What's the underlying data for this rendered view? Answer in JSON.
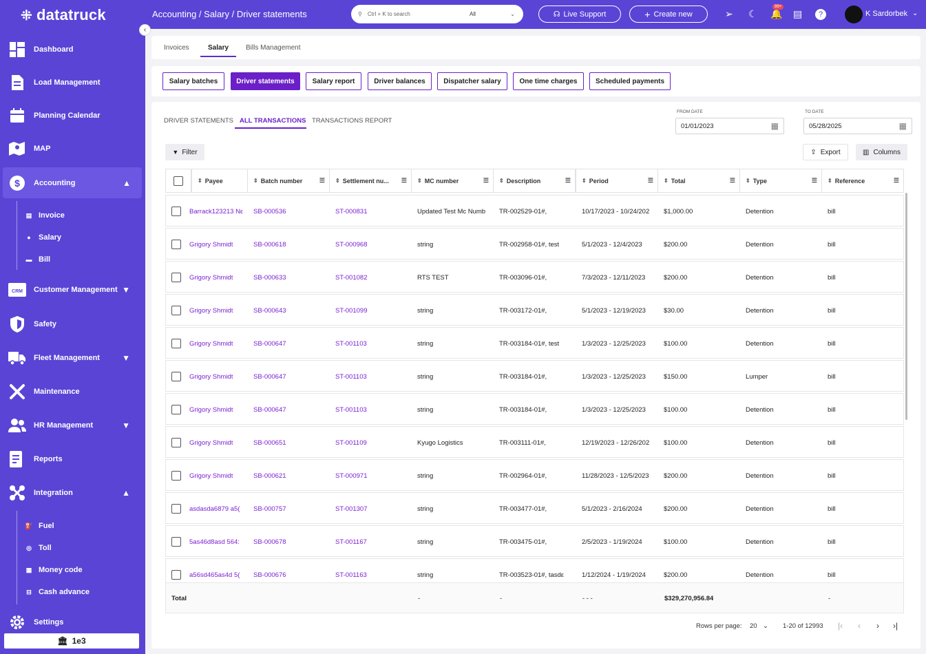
{
  "app": {
    "name": "datatruck",
    "org": "1e3"
  },
  "sidebar": {
    "items": [
      {
        "label": "Dashboard",
        "icon": "dashboard-icon"
      },
      {
        "label": "Load Management",
        "icon": "document-icon"
      },
      {
        "label": "Planning Calendar",
        "icon": "calendar-icon"
      },
      {
        "label": "MAP",
        "icon": "map-icon"
      },
      {
        "label": "Accounting",
        "icon": "dollar-icon"
      },
      {
        "label": "Customer Management",
        "icon": "crm-icon"
      },
      {
        "label": "Safety",
        "icon": "shield-icon"
      },
      {
        "label": "Fleet Management",
        "icon": "truck-icon"
      },
      {
        "label": "Maintenance",
        "icon": "wrench-icon"
      },
      {
        "label": "HR Management",
        "icon": "people-icon"
      },
      {
        "label": "Reports",
        "icon": "report-icon"
      },
      {
        "label": "Integration",
        "icon": "integration-icon"
      },
      {
        "label": "Settings",
        "icon": "gear-icon"
      }
    ],
    "accounting_sub": [
      "Invoice",
      "Salary",
      "Bill"
    ],
    "integration_sub": [
      "Fuel",
      "Toll",
      "Money code",
      "Cash advance"
    ]
  },
  "header": {
    "breadcrumb": "Accounting / Salary / Driver statements",
    "search_placeholder": "Ctrl + K to search",
    "search_scope": "All",
    "live_support": "Live Support",
    "create_new": "Create new",
    "notif_badge": "99+",
    "user": "K Sardorbek"
  },
  "tabs": [
    "Invoices",
    "Salary",
    "Bills Management"
  ],
  "subtabs": [
    "Salary batches",
    "Driver statements",
    "Salary report",
    "Driver balances",
    "Dispatcher salary",
    "One time charges",
    "Scheduled payments"
  ],
  "view_tabs": [
    "DRIVER STATEMENTS",
    "ALL TRANSACTIONS",
    "TRANSACTIONS REPORT"
  ],
  "filters": {
    "from_label": "FROM DATE",
    "from_value": "01/01/2023",
    "to_label": "TO DATE",
    "to_value": "05/28/2025",
    "filter": "Filter",
    "export": "Export",
    "columns": "Columns"
  },
  "table": {
    "columns": [
      "Payee",
      "Batch number",
      "Settlement nu...",
      "MC number",
      "Description",
      "Period",
      "Total",
      "Type",
      "Reference"
    ],
    "rows": [
      [
        "Barrack123213 Nε",
        "SB-000536",
        "ST-000831",
        "Updated Test Mc Numb",
        "TR-002529-01#,",
        "10/17/2023 - 10/24/202",
        "$1,000.00",
        "Detention",
        "bill"
      ],
      [
        "Grigory Shmidt",
        "SB-000618",
        "ST-000968",
        "string",
        "TR-002958-01#, test",
        "5/1/2023 - 12/4/2023",
        "$200.00",
        "Detention",
        "bill"
      ],
      [
        "Grigory Shmidt",
        "SB-000633",
        "ST-001082",
        "RTS TEST",
        "TR-003096-01#,",
        "7/3/2023 - 12/11/2023",
        "$200.00",
        "Detention",
        "bill"
      ],
      [
        "Grigory Shmidt",
        "SB-000643",
        "ST-001099",
        "string",
        "TR-003172-01#,",
        "5/1/2023 - 12/19/2023",
        "$30.00",
        "Detention",
        "bill"
      ],
      [
        "Grigory Shmidt",
        "SB-000647",
        "ST-001103",
        "string",
        "TR-003184-01#, test",
        "1/3/2023 - 12/25/2023",
        "$100.00",
        "Detention",
        "bill"
      ],
      [
        "Grigory Shmidt",
        "SB-000647",
        "ST-001103",
        "string",
        "TR-003184-01#,",
        "1/3/2023 - 12/25/2023",
        "$150.00",
        "Lumper",
        "bill"
      ],
      [
        "Grigory Shmidt",
        "SB-000647",
        "ST-001103",
        "string",
        "TR-003184-01#,",
        "1/3/2023 - 12/25/2023",
        "$100.00",
        "Detention",
        "bill"
      ],
      [
        "Grigory Shmidt",
        "SB-000651",
        "ST-001109",
        "Kyugo Logistics",
        "TR-003111-01#,",
        "12/19/2023 - 12/26/202",
        "$100.00",
        "Detention",
        "bill"
      ],
      [
        "Grigory Shmidt",
        "SB-000621",
        "ST-000971",
        "string",
        "TR-002964-01#,",
        "11/28/2023 - 12/5/2023",
        "$200.00",
        "Detention",
        "bill"
      ],
      [
        "asdasda6879 a5(",
        "SB-000757",
        "ST-001307",
        "string",
        "TR-003477-01#,",
        "5/1/2023 - 2/16/2024",
        "$200.00",
        "Detention",
        "bill"
      ],
      [
        "5as46d8asd 564:",
        "SB-000678",
        "ST-001167",
        "string",
        "TR-003475-01#,",
        "2/5/2023 - 1/19/2024",
        "$100.00",
        "Detention",
        "bill"
      ],
      [
        "a56sd465as4d 5(",
        "SB-000676",
        "ST-001163",
        "string",
        "TR-003523-01#, tasdε",
        "1/12/2024 - 1/19/2024",
        "$200.00",
        "Detention",
        "bill"
      ]
    ],
    "total": [
      "Total",
      "-",
      "-",
      "- - -",
      "$329,270,956.84",
      "-"
    ]
  },
  "pagination": {
    "rows_label": "Rows per page:",
    "rows_value": "20",
    "range": "1-20 of 12993"
  }
}
